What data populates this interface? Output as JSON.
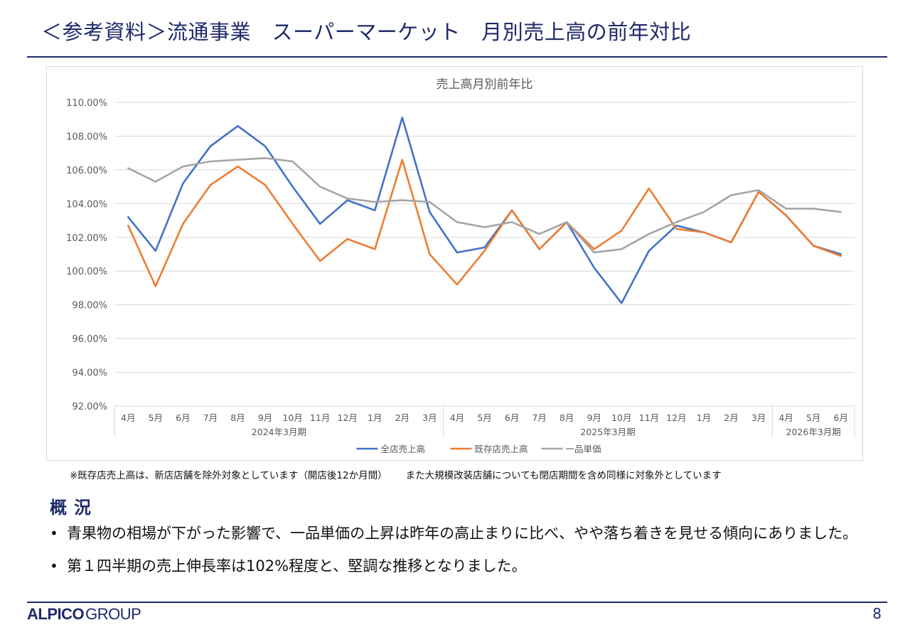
{
  "page": {
    "title": "＜参考資料＞流通事業　スーパーマーケット　月別売上高の前年対比",
    "footnote_1": "※既存店売上高は、新店店舗を除外対象としています（開店後12か月間）",
    "footnote_2": "また大規模改装店舗についても閉店期間を含め同様に対象外としています",
    "section_heading": "概況",
    "bullets": [
      "青果物の相場が下がった影響で、一品単価の上昇は昨年の高止まりに比べ、やや落ち着きを見せる傾向にありました。",
      "第１四半期の売上伸長率は102%程度と、堅調な推移となりました。"
    ],
    "logo_text_bold": "ALPICO",
    "logo_text_light": "GROUP",
    "page_number": "8"
  },
  "colors": {
    "accent": "#1f2a6b",
    "series_total": "#4472c4",
    "series_existing": "#ed7d31",
    "series_unit_price": "#a5a5a5",
    "gridline": "#d9d9d9"
  },
  "chart_data": {
    "type": "line",
    "title": "売上高月別前年比",
    "categories": [
      "4月",
      "5月",
      "6月",
      "7月",
      "8月",
      "9月",
      "10月",
      "11月",
      "12月",
      "1月",
      "2月",
      "3月",
      "4月",
      "5月",
      "6月",
      "7月",
      "8月",
      "9月",
      "10月",
      "11月",
      "12月",
      "1月",
      "2月",
      "3月",
      "4月",
      "5月",
      "6月"
    ],
    "groups": [
      {
        "label": "2024年3月期",
        "count": 12
      },
      {
        "label": "2025年3月期",
        "count": 12
      },
      {
        "label": "2026年3月期",
        "count": 3
      }
    ],
    "y_ticks": [
      "110.00%",
      "108.00%",
      "106.00%",
      "104.00%",
      "102.00%",
      "100.00%",
      "98.00%",
      "96.00%",
      "94.00%",
      "92.00%"
    ],
    "ylim": [
      92,
      110
    ],
    "grid": true,
    "legend_position": "bottom",
    "series": [
      {
        "name": "全店売上高",
        "color": "#4472c4",
        "values": [
          103.2,
          101.2,
          105.2,
          107.4,
          108.6,
          107.4,
          105.0,
          102.8,
          104.2,
          103.6,
          109.1,
          103.5,
          101.1,
          101.4,
          103.6,
          101.3,
          102.9,
          100.2,
          98.1,
          101.2,
          102.7,
          102.3,
          101.7,
          104.7,
          103.3,
          101.5,
          101.0
        ]
      },
      {
        "name": "既存店売上高",
        "color": "#ed7d31",
        "values": [
          102.7,
          99.1,
          102.8,
          105.1,
          106.2,
          105.1,
          102.8,
          100.6,
          101.9,
          101.3,
          106.6,
          101.0,
          99.2,
          101.2,
          103.6,
          101.3,
          102.9,
          101.3,
          102.4,
          104.9,
          102.5,
          102.3,
          101.7,
          104.7,
          103.3,
          101.5,
          100.9
        ]
      },
      {
        "name": "一品単価",
        "color": "#a5a5a5",
        "values": [
          106.1,
          105.3,
          106.2,
          106.5,
          106.6,
          106.7,
          106.5,
          105.0,
          104.3,
          104.1,
          104.2,
          104.1,
          102.9,
          102.6,
          102.9,
          102.2,
          102.9,
          101.1,
          101.3,
          102.2,
          102.9,
          103.5,
          104.5,
          104.8,
          103.7,
          103.7,
          103.5
        ]
      }
    ]
  }
}
